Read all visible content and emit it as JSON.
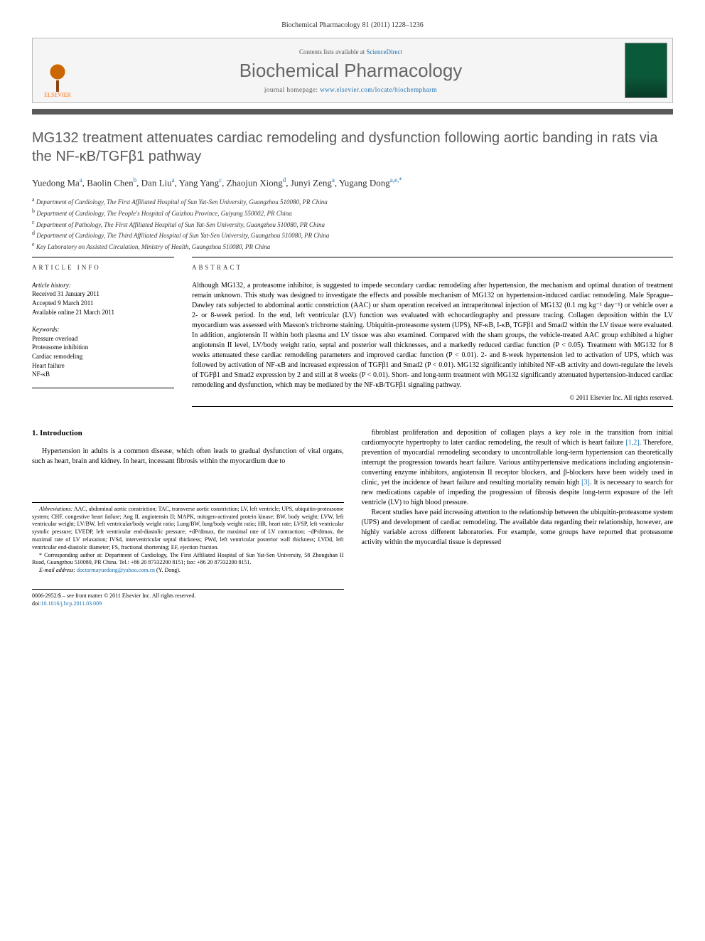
{
  "header_citation": "Biochemical Pharmacology 81 (2011) 1228–1236",
  "banner": {
    "contents_prefix": "Contents lists available at ",
    "contents_link": "ScienceDirect",
    "journal": "Biochemical Pharmacology",
    "homepage_prefix": "journal homepage: ",
    "homepage_url": "www.elsevier.com/locate/biochempharm",
    "publisher": "ELSEVIER"
  },
  "title": "MG132 treatment attenuates cardiac remodeling and dysfunction following aortic banding in rats via the NF-κB/TGFβ1 pathway",
  "authors_html": "Yuedong Ma<sup>a</sup>, Baolin Chen<sup>b</sup>, Dan Liu<sup>a</sup>, Yang Yang<sup>c</sup>, Zhaojun Xiong<sup>d</sup>, Junyi Zeng<sup>a</sup>, Yugang Dong<sup>a,e,*</sup>",
  "affiliations": [
    "a Department of Cardiology, The First Affiliated Hospital of Sun Yat-Sen University, Guangzhou 510080, PR China",
    "b Department of Cardiology, The People's Hospital of Guizhou Province, Guiyang 550002, PR China",
    "c Department of Pathology, The First Affiliated Hospital of Sun Yat-Sen University, Guangzhou 510080, PR China",
    "d Department of Cardiology, The Third Affiliated Hospital of Sun Yat-Sen University, Guangzhou 510080, PR China",
    "e Key Laboratory on Assisted Circulation, Ministry of Health, Guangzhou 510080, PR China"
  ],
  "article_info": {
    "heading": "ARTICLE INFO",
    "history_label": "Article history:",
    "received": "Received 31 January 2011",
    "accepted": "Accepted 9 March 2011",
    "online": "Available online 21 March 2011",
    "keywords_label": "Keywords:",
    "keywords": [
      "Pressure overload",
      "Proteasome inhibition",
      "Cardiac remodeling",
      "Heart failure",
      "NF-κB"
    ]
  },
  "abstract": {
    "heading": "ABSTRACT",
    "text": "Although MG132, a proteasome inhibitor, is suggested to impede secondary cardiac remodeling after hypertension, the mechanism and optimal duration of treatment remain unknown. This study was designed to investigate the effects and possible mechanism of MG132 on hypertension-induced cardiac remodeling. Male Sprague–Dawley rats subjected to abdominal aortic constriction (AAC) or sham operation received an intraperitoneal injection of MG132 (0.1 mg kg⁻¹ day⁻¹) or vehicle over a 2- or 8-week period. In the end, left ventricular (LV) function was evaluated with echocardiography and pressure tracing. Collagen deposition within the LV myocardium was assessed with Masson's trichrome staining. Ubiquitin-proteasome system (UPS), NF-κB, I-κB, TGFβ1 and Smad2 within the LV tissue were evaluated. In addition, angiotensin II within both plasma and LV tissue was also examined. Compared with the sham groups, the vehicle-treated AAC group exhibited a higher angiotensin II level, LV/body weight ratio, septal and posterior wall thicknesses, and a markedly reduced cardiac function (P < 0.05). Treatment with MG132 for 8 weeks attenuated these cardiac remodeling parameters and improved cardiac function (P < 0.01). 2- and 8-week hypertension led to activation of UPS, which was followed by activation of NF-κB and increased expression of TGFβ1 and Smad2 (P < 0.01). MG132 significantly inhibited NF-κB activity and down-regulate the levels of TGFβ1 and Smad2 expression by 2 and still at 8 weeks (P < 0.01). Short- and long-term treatment with MG132 significantly attenuated hypertension-induced cardiac remodeling and dysfunction, which may be mediated by the NF-κB/TGFβ1 signaling pathway.",
    "copyright": "© 2011 Elsevier Inc. All rights reserved."
  },
  "intro": {
    "heading": "1. Introduction",
    "para1": "Hypertension in adults is a common disease, which often leads to gradual dysfunction of vital organs, such as heart, brain and kidney. In heart, incessant fibrosis within the myocardium due to",
    "para2_pre": "fibroblast proliferation and deposition of collagen plays a key role in the transition from initial cardiomyocyte hypertrophy to later cardiac remodeling, the result of which is heart failure ",
    "ref12": "[1,2]",
    "para2_mid": ". Therefore, prevention of myocardial remodeling secondary to uncontrollable long-term hypertension can theoretically interrupt the progression towards heart failure. Various antihypertensive medications including angiotensin-converting enzyme inhibitors, angiotensin II receptor blockers, and β-blockers have been widely used in clinic, yet the incidence of heart failure and resulting mortality remain high ",
    "ref3": "[3]",
    "para2_post": ". It is necessary to search for new medications capable of impeding the progression of fibrosis despite long-term exposure of the left ventricle (LV) to high blood pressure.",
    "para3": "Recent studies have paid increasing attention to the relationship between the ubiquitin-proteasome system (UPS) and development of cardiac remodeling. The available data regarding their relationship, however, are highly variable across different laboratories. For example, some groups have reported that proteasome activity within the myocardial tissue is depressed"
  },
  "footnotes": {
    "abbrev_label": "Abbreviations:",
    "abbrev_text": " AAC, abdominal aortic constriction; TAC, transverse aortic constriction; LV, left ventricle; UPS, ubiquitin-proteasome system; CHF, congestive heart failure; Ang II, angiotensin II; MAPK, mitogen-activated protein kinase; BW, body weight; LVW, left ventricular weight; LV/BW, left ventricular/body weight ratio; Lung/BW, lung/body weight ratio; HR, heart rate; LVSP, left ventricular systolic pressure; LVEDP, left ventricular end-diastolic pressure; +dP/dtmax, the maximal rate of LV contraction; −dP/dtmax, the maximal rate of LV relaxation; IVSd, interventricular septal thickness; PWd, left ventricular posterior wall thickness; LVDd, left ventricular end-diastolic diameter; FS, fractional shortening; EF, ejection fraction.",
    "corr_label": "* Corresponding author at:",
    "corr_text": " Department of Cardiology, The First Affiliated Hospital of Sun Yat-Sen University, 58 Zhongshan II Road, Guangzhou 510080, PR China. Tel.: +86 20 87332200 8151; fax: +86 20 87332200 8151.",
    "email_label": "E-mail address: ",
    "email": "doctormayuedong@yahoo.com.cn",
    "email_suffix": " (Y. Dong)."
  },
  "bottom": {
    "line1": "0006-2952/$ – see front matter © 2011 Elsevier Inc. All rights reserved.",
    "doi_prefix": "doi:",
    "doi": "10.1016/j.bcp.2011.03.009"
  },
  "colors": {
    "link": "#1a6faf",
    "title_gray": "#5a5a5a",
    "elsevier_orange": "#ff6600",
    "cover_green": "#0a5a3a"
  }
}
